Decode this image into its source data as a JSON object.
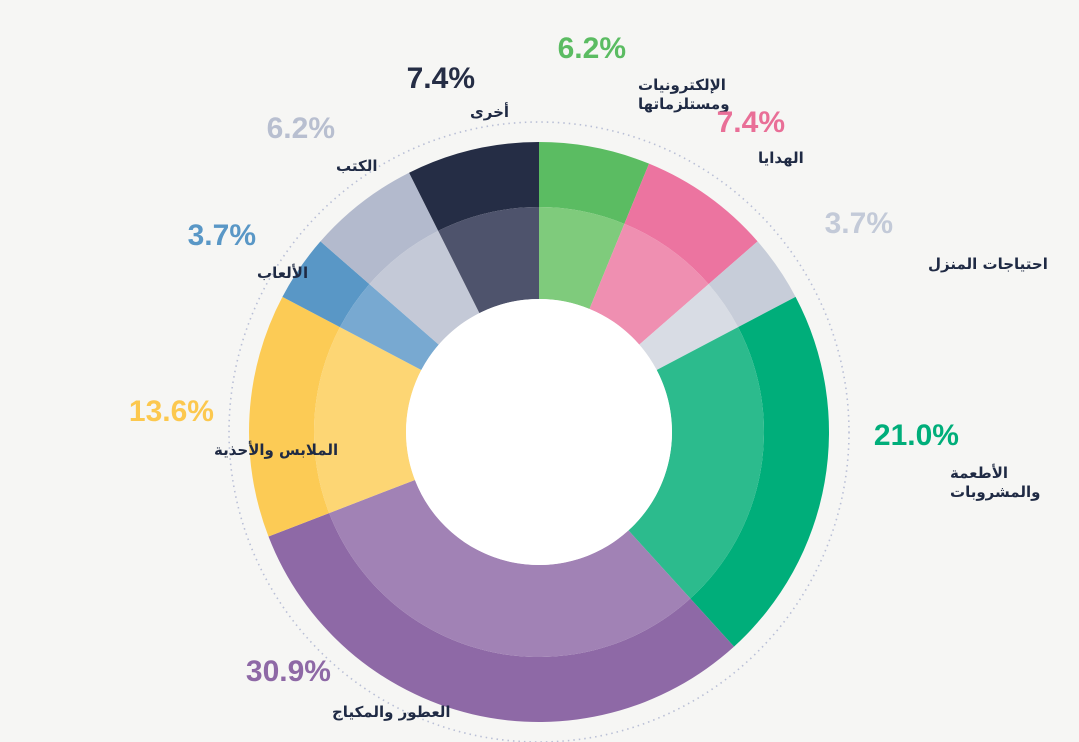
{
  "chart_data": {
    "type": "pie",
    "variant": "donut",
    "title": "",
    "slices": [
      {
        "label": "الإلكترونيات ومستلزماتها",
        "label_lines": [
          "الإلكترونيات",
          "ومستلزماتها"
        ],
        "value": 6.2,
        "value_label": "6.2%",
        "color": "#5bbc62",
        "inner_color": "#7fcb7c",
        "pct_color": "#5bbc62"
      },
      {
        "label": "الهدايا",
        "label_lines": [
          "الهدايا"
        ],
        "value": 7.4,
        "value_label": "7.4%",
        "color": "#ec74a0",
        "inner_color": "#ef8fb1",
        "pct_color": "#e96f97"
      },
      {
        "label": "احتياجات المنزل",
        "label_lines": [
          "احتياجات المنزل"
        ],
        "value": 3.7,
        "value_label": "3.7%",
        "color": "#c7cdd9",
        "inner_color": "#d8dce4",
        "pct_color": "#c3cad8"
      },
      {
        "label": "الأطعمة والمشروبات",
        "label_lines": [
          "الأطعمة",
          "والمشروبات"
        ],
        "value": 21.0,
        "value_label": "21.0%",
        "color": "#00ae7a",
        "inner_color": "#2cbb8d",
        "pct_color": "#00ae7a"
      },
      {
        "label": "العطور والمكياج",
        "label_lines": [
          "العطور والمكياج"
        ],
        "value": 30.9,
        "value_label": "30.9%",
        "color": "#8e69a6",
        "inner_color": "#a182b5",
        "pct_color": "#8e69a6"
      },
      {
        "label": "الملابس والأحذية",
        "label_lines": [
          "الملابس والأحذية"
        ],
        "value": 13.6,
        "value_label": "13.6%",
        "color": "#fccb55",
        "inner_color": "#fdd674",
        "pct_color": "#fcc84e"
      },
      {
        "label": "الألعاب",
        "label_lines": [
          "الألعاب"
        ],
        "value": 3.7,
        "value_label": "3.7%",
        "color": "#5997c6",
        "inner_color": "#78a9d1",
        "pct_color": "#5997c6"
      },
      {
        "label": "الكتب",
        "label_lines": [
          "الكتب"
        ],
        "value": 6.2,
        "value_label": "6.2%",
        "color": "#b3bacd",
        "inner_color": "#c4c9d7",
        "pct_color": "#b8bfd0"
      },
      {
        "label": "أخرى",
        "label_lines": [
          "أخرى"
        ],
        "value": 7.4,
        "value_label": "7.4%",
        "color": "#252d45",
        "inner_color": "#4e536c",
        "pct_color": "#252d45"
      }
    ]
  }
}
